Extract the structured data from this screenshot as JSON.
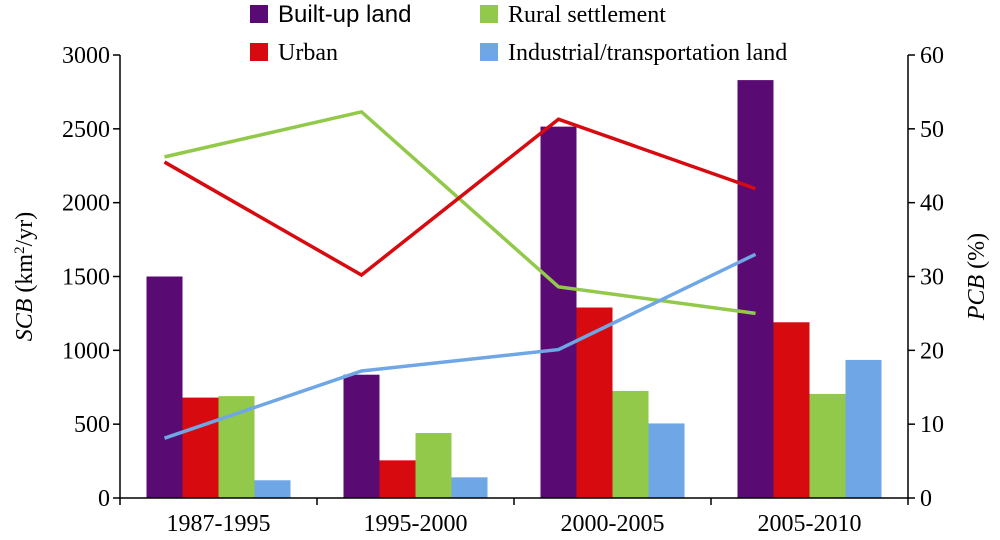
{
  "chart_data": {
    "type": "bar",
    "categories": [
      "1987-1995",
      "1995-2000",
      "2000-2005",
      "2005-2010"
    ],
    "bar_series": [
      {
        "name": "Built-up land",
        "color": "#5a0a73",
        "values": [
          1500,
          835,
          2515,
          2830
        ]
      },
      {
        "name": "Urban",
        "color": "#d70a10",
        "values": [
          680,
          255,
          1290,
          1190
        ]
      },
      {
        "name": "Rural settlement",
        "color": "#92c94a",
        "values": [
          690,
          440,
          725,
          705
        ]
      },
      {
        "name": "Industrial/transportation land",
        "color": "#6ea6e6",
        "values": [
          120,
          140,
          505,
          935
        ]
      }
    ],
    "line_series": [
      {
        "name": "Built-up land",
        "axis": "right",
        "color": "#5a0a73",
        "values": []
      },
      {
        "name": "Rural settlement",
        "axis": "right",
        "color": "#92c94a",
        "values": [
          46.2,
          52.3,
          28.6,
          25.0
        ]
      },
      {
        "name": "Urban",
        "axis": "right",
        "color": "#d70a10",
        "values": [
          45.5,
          30.2,
          51.3,
          41.9
        ]
      },
      {
        "name": "Industrial/transportation land",
        "axis": "right",
        "color": "#6ea6e6",
        "values": [
          8.1,
          17.2,
          20.1,
          33.0
        ]
      }
    ],
    "y_left": {
      "label_italic": "SCB",
      "label_rest": " (km",
      "label_sup": "2",
      "label_end": "/yr)",
      "lim": [
        0,
        3000
      ],
      "ticks": [
        0,
        500,
        1000,
        1500,
        2000,
        2500,
        3000
      ]
    },
    "y_right": {
      "label_italic": "PCB",
      "label_rest": " (%)",
      "lim": [
        0,
        60
      ],
      "ticks": [
        0,
        10,
        20,
        30,
        40,
        50,
        60
      ]
    },
    "legend": {
      "placement": "top",
      "items": [
        {
          "label": "Built-up land",
          "color": "#5a0a73",
          "sans": true
        },
        {
          "label": "Rural settlement",
          "color": "#92c94a",
          "sans": false
        },
        {
          "label": "Urban",
          "color": "#d70a10",
          "sans": false
        },
        {
          "label": "Industrial/transportation land",
          "color": "#6ea6e6",
          "sans": false
        }
      ]
    },
    "grid": false
  }
}
